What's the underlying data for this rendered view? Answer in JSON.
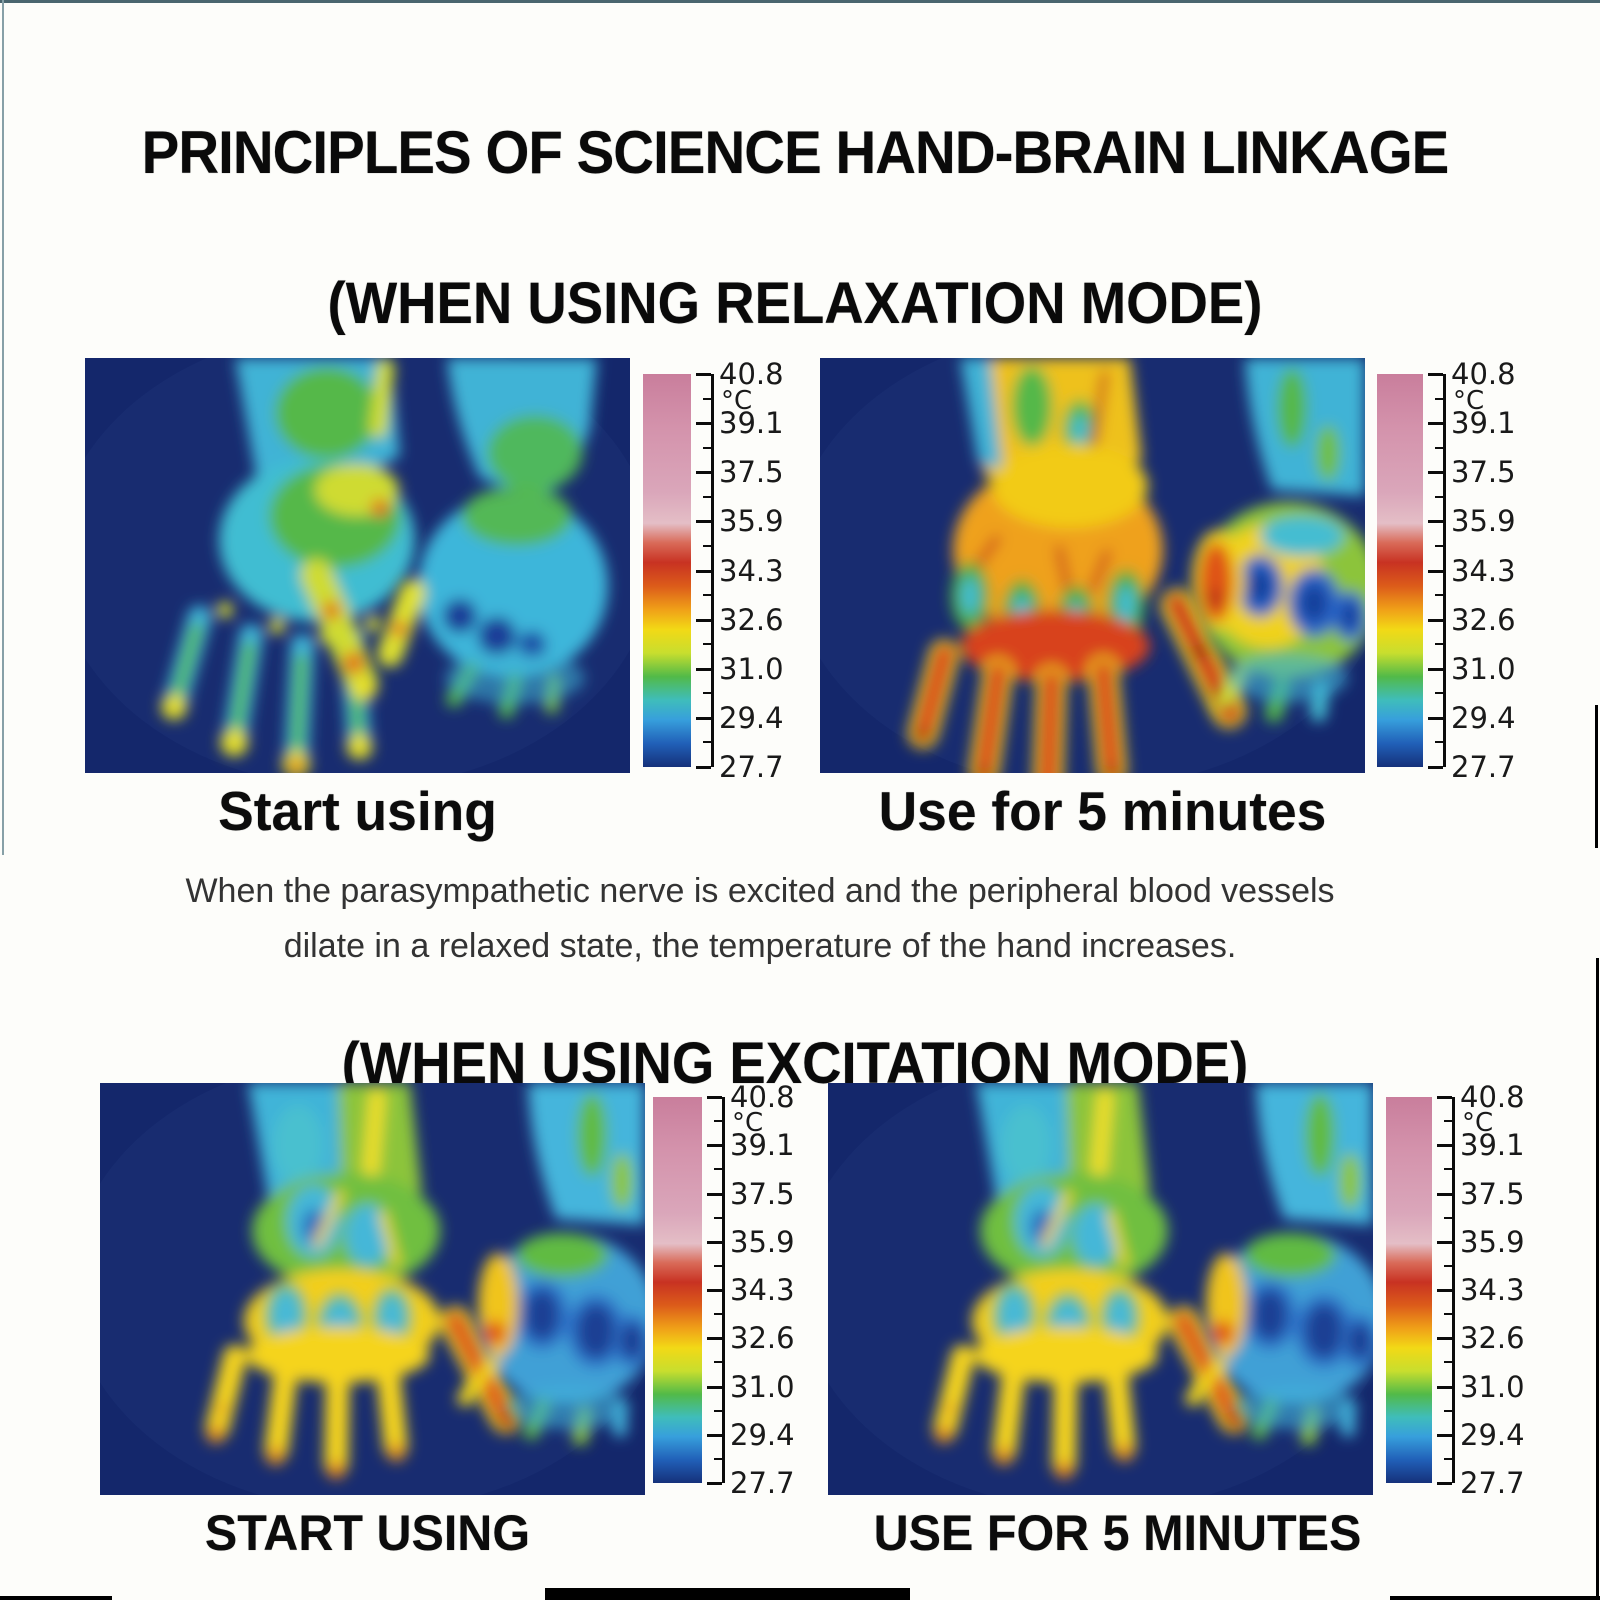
{
  "page": {
    "title": "PRINCIPLES OF SCIENCE HAND-BRAIN LINKAGE"
  },
  "relaxation": {
    "heading": "(WHEN USING RELAXATION MODE)",
    "panels": [
      {
        "caption": "Start using"
      },
      {
        "caption": "Use for 5 minutes"
      }
    ],
    "description": [
      "When the parasympathetic nerve is excited and the peripheral blood vessels",
      "dilate in a relaxed state, the temperature of the hand increases."
    ]
  },
  "excitation": {
    "heading": "(WHEN USING EXCITATION MODE)",
    "panels": [
      {
        "caption": "START USING"
      },
      {
        "caption": "USE FOR 5 MINUTES"
      }
    ]
  },
  "thermal_scale": {
    "unit_label": "°C",
    "tick_labels": [
      "40.8",
      "°C",
      "39.1",
      "37.5",
      "35.9",
      "34.3",
      "32.6",
      "31.0",
      "29.4",
      "27.7"
    ],
    "max_c": 40.8,
    "min_c": 27.7,
    "colorbar_colors": [
      "#c97e9c",
      "#d493ac",
      "#daa6ba",
      "#e4bec6",
      "#d96a58",
      "#c83222",
      "#dc5c1a",
      "#f0a118",
      "#f2d916",
      "#c8de2e",
      "#52ba48",
      "#3fbdbb",
      "#379fdc",
      "#2160b8",
      "#15317a"
    ]
  },
  "colors": {
    "thermal_background": "#14276b",
    "page_background": "#fdfdfa",
    "heading_text": "#0a0a0a",
    "description_text": "#333333"
  }
}
